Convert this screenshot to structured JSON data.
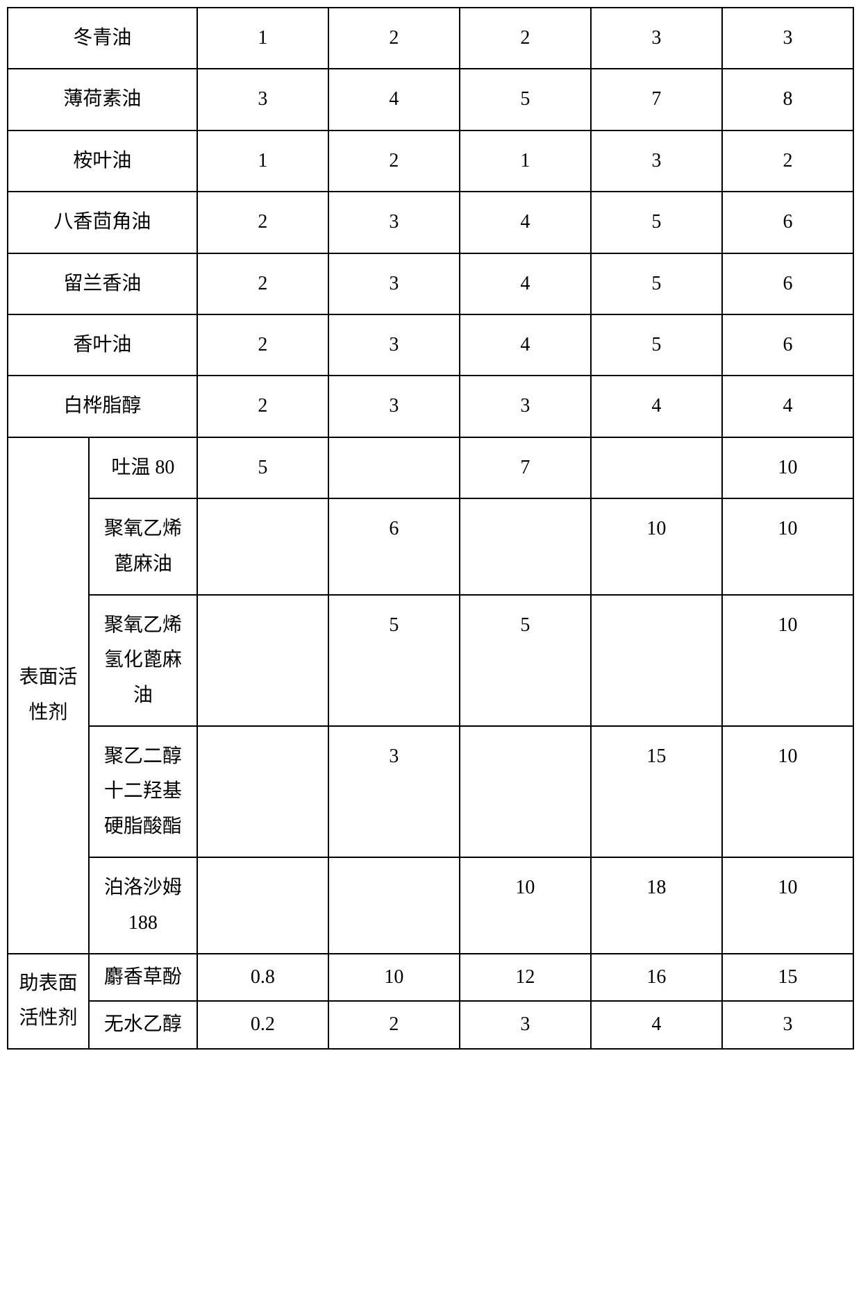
{
  "table": {
    "simple_rows": [
      {
        "name": "冬青油",
        "v": [
          "1",
          "2",
          "2",
          "3",
          "3"
        ]
      },
      {
        "name": "薄荷素油",
        "v": [
          "3",
          "4",
          "5",
          "7",
          "8"
        ]
      },
      {
        "name": "桉叶油",
        "v": [
          "1",
          "2",
          "1",
          "3",
          "2"
        ]
      },
      {
        "name": "八香茴角油",
        "v": [
          "2",
          "3",
          "4",
          "5",
          "6"
        ]
      },
      {
        "name": "留兰香油",
        "v": [
          "2",
          "3",
          "4",
          "5",
          "6"
        ]
      },
      {
        "name": "香叶油",
        "v": [
          "2",
          "3",
          "4",
          "5",
          "6"
        ]
      },
      {
        "name": "白桦脂醇",
        "v": [
          "2",
          "3",
          "3",
          "4",
          "4"
        ]
      }
    ],
    "group1": {
      "label_line1": "表面活",
      "label_line2": "性剂",
      "rows": [
        {
          "name_lines": [
            "吐温 80"
          ],
          "v": [
            "5",
            "",
            "7",
            "",
            "10"
          ]
        },
        {
          "name_lines": [
            "聚氧乙烯",
            "蓖麻油"
          ],
          "v": [
            "",
            "6",
            "",
            "10",
            "10"
          ]
        },
        {
          "name_lines": [
            "聚氧乙烯",
            "氢化蓖麻",
            "油"
          ],
          "v": [
            "",
            "5",
            "5",
            "",
            "10"
          ]
        },
        {
          "name_lines": [
            "聚乙二醇",
            "十二羟基",
            "硬脂酸酯"
          ],
          "v": [
            "",
            "3",
            "",
            "15",
            "10"
          ]
        },
        {
          "name_lines": [
            "泊洛沙姆",
            "188"
          ],
          "v": [
            "",
            "",
            "10",
            "18",
            "10"
          ]
        }
      ]
    },
    "group2": {
      "label_line1": "助表面",
      "label_line2": "活性剂",
      "rows": [
        {
          "name": "麝香草酚",
          "v": [
            "0.8",
            "10",
            "12",
            "16",
            "15"
          ]
        },
        {
          "name": "无水乙醇",
          "v": [
            "0.2",
            "2",
            "3",
            "4",
            "3"
          ]
        }
      ]
    }
  },
  "style": {
    "border_color": "#000000",
    "background_color": "#ffffff",
    "font_size_pt": 21,
    "line_height": 1.8,
    "col_group_width_pct": 9.6,
    "col_name_width_pct": 12.8,
    "col_val_width_pct": 15.52
  }
}
